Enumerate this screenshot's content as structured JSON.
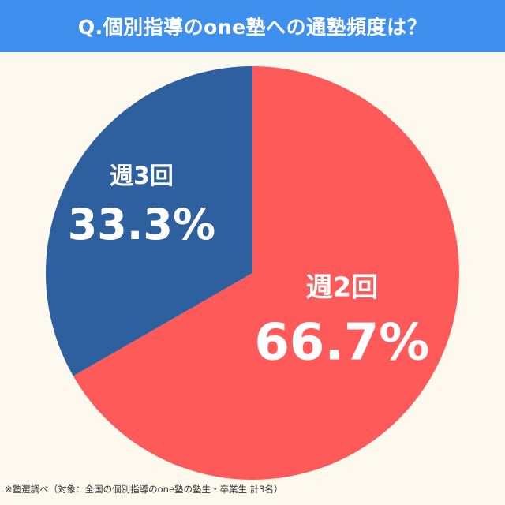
{
  "colors": {
    "background": "#fdf9ef",
    "title_bar": "#3f8fee",
    "title_text": "#ffffff",
    "label_text": "#ffffff"
  },
  "chart_data": {
    "type": "pie",
    "title": "Q.個別指導のone塾への通塾頻度は？",
    "start_angle_deg": 0,
    "direction": "clockwise",
    "slices": [
      {
        "label": "週2回",
        "value": 66.7,
        "value_label": "66.7%",
        "color": "#ff5a5a"
      },
      {
        "label": "週3回",
        "value": 33.3,
        "value_label": "33.3%",
        "color": "#2e5f9f"
      }
    ]
  },
  "footnote": "※塾選調べ（対象：全国の個別指導のone塾の塾生・卒業生 計3名）"
}
